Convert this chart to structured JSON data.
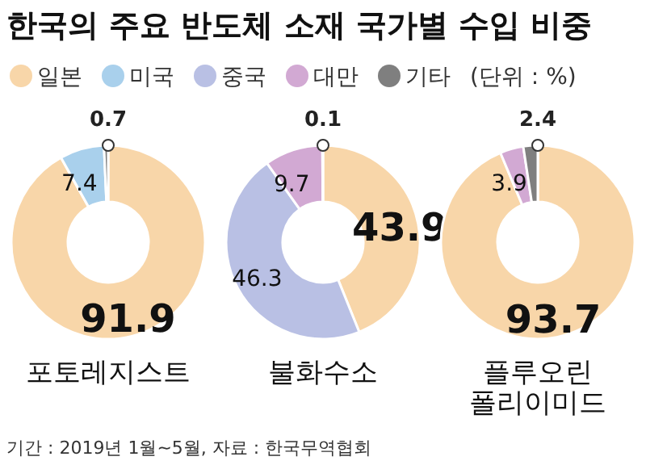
{
  "chart_data": [
    {
      "type": "donut",
      "title": "한국의 주요 반도체 소재 국가별 수입 비중",
      "subtitle": "포토레지스트",
      "legend": "top",
      "annotations": [
        "(단위 : %)"
      ],
      "data_labels": true,
      "categories": [
        "일본",
        "미국",
        "중국",
        "대만",
        "기타"
      ],
      "values": [
        91.9,
        7.4,
        null,
        null,
        0.7
      ],
      "colors": [
        "#f8d6a9",
        "#a9d0ec",
        "#b9c0e4",
        "#d2a9d3",
        "#7f7f7f"
      ]
    },
    {
      "type": "donut",
      "subtitle": "불화수소",
      "data_labels": true,
      "categories": [
        null,
        null,
        null,
        null
      ],
      "values": [
        43.9,
        46.3,
        9.7,
        0.1
      ],
      "colors": [
        "#f8d6a9",
        "#b9c0e4",
        "#d2a9d3",
        "#7f7f7f"
      ]
    },
    {
      "type": "donut",
      "subtitle": "플루오린 폴리이미드",
      "annotations": [
        "기간 : 2019년 1월~5월, 자료 : 한국무역협회"
      ],
      "data_labels": true,
      "categories": [
        null,
        null,
        null
      ],
      "values": [
        93.7,
        3.9,
        2.4
      ],
      "colors": [
        "#f8d6a9",
        "#d2a9d3",
        "#7f7f7f"
      ]
    }
  ]
}
